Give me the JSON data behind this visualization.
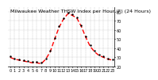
{
  "title": "Milwaukee Weather THSW Index per Hour (F) (24 Hours)",
  "x": [
    0,
    1,
    2,
    3,
    4,
    5,
    6,
    7,
    8,
    9,
    10,
    11,
    12,
    13,
    14,
    15,
    16,
    17,
    18,
    19,
    20,
    21,
    22,
    23
  ],
  "y_red": [
    30,
    28,
    27,
    26,
    25,
    24,
    24,
    23,
    28,
    36,
    50,
    63,
    72,
    78,
    76,
    73,
    64,
    52,
    42,
    36,
    32,
    30,
    28,
    27
  ],
  "y_black": [
    31,
    29,
    28,
    27,
    26,
    25,
    25,
    24,
    29,
    37,
    51,
    64,
    73,
    79,
    77,
    74,
    65,
    53,
    43,
    37,
    33,
    31,
    29,
    28
  ],
  "line_color": "#ff0000",
  "dot_color": "#000000",
  "bg_color": "#ffffff",
  "grid_color": "#888888",
  "ylim": [
    20,
    85
  ],
  "xlim": [
    -0.5,
    23.5
  ],
  "yticks": [
    20,
    30,
    40,
    50,
    60,
    70,
    80
  ],
  "ytick_labels": [
    "20",
    "30",
    "40",
    "50",
    "60",
    "70",
    "80"
  ],
  "xtick_labels": [
    "0",
    "",
    "",
    "1",
    "",
    "",
    "2",
    "",
    "",
    "3",
    "",
    "",
    "4",
    "",
    "",
    "5",
    "",
    "",
    "6",
    "",
    "",
    "7",
    "",
    "",
    "8",
    "",
    "",
    "9",
    "",
    "",
    "10",
    "",
    "",
    "11",
    "",
    "",
    "12",
    "",
    "",
    "13",
    "",
    "",
    "14",
    "",
    "",
    "15",
    "",
    "",
    "16",
    "",
    "",
    "17",
    "",
    "",
    "18",
    "",
    "",
    "19",
    "",
    "",
    "20",
    "",
    "",
    "21",
    "",
    "",
    "22",
    "",
    "",
    "23"
  ],
  "title_fontsize": 4.5,
  "tick_fontsize": 3.5,
  "line_width": 1.0,
  "dot_size": 1.5
}
